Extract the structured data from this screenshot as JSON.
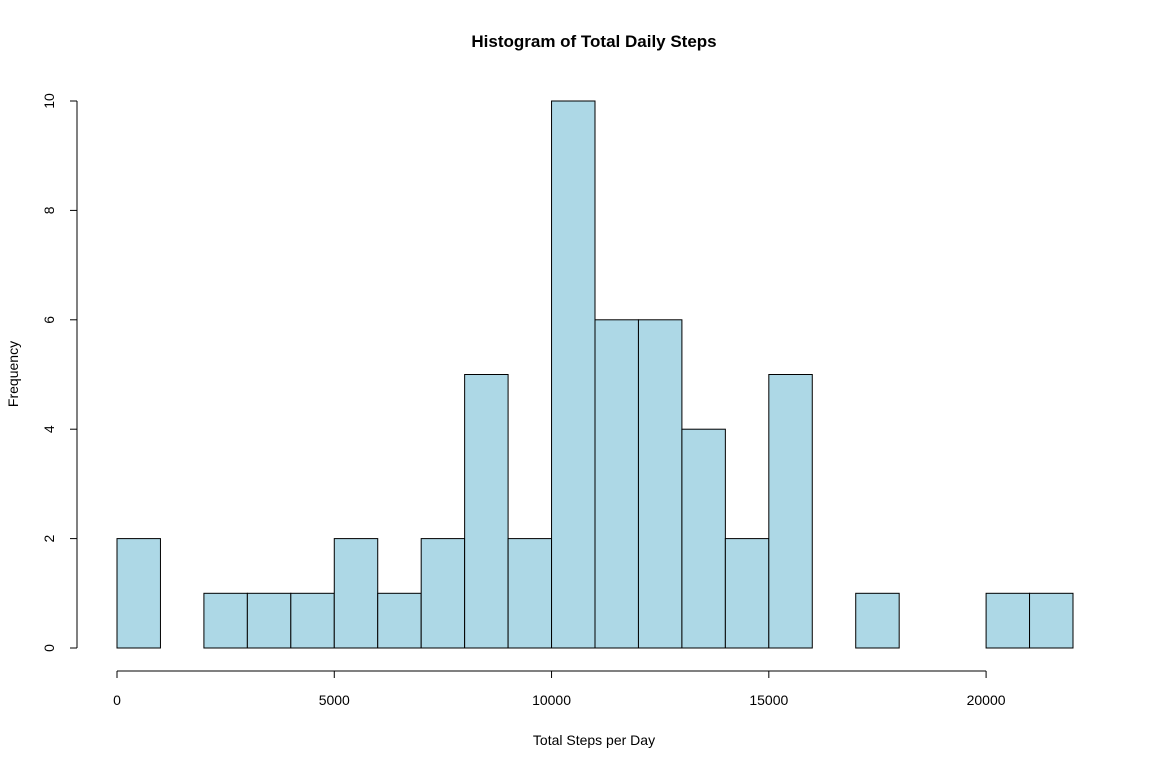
{
  "chart_data": {
    "type": "bar",
    "title": "Histogram of Total Daily Steps",
    "xlabel": "Total Steps per Day",
    "ylabel": "Frequency",
    "bin_width": 1000,
    "bins": [
      {
        "start": 0,
        "end": 1000,
        "count": 2
      },
      {
        "start": 1000,
        "end": 2000,
        "count": 0
      },
      {
        "start": 2000,
        "end": 3000,
        "count": 1
      },
      {
        "start": 3000,
        "end": 4000,
        "count": 1
      },
      {
        "start": 4000,
        "end": 5000,
        "count": 1
      },
      {
        "start": 5000,
        "end": 6000,
        "count": 2
      },
      {
        "start": 6000,
        "end": 7000,
        "count": 1
      },
      {
        "start": 7000,
        "end": 8000,
        "count": 2
      },
      {
        "start": 8000,
        "end": 9000,
        "count": 5
      },
      {
        "start": 9000,
        "end": 10000,
        "count": 2
      },
      {
        "start": 10000,
        "end": 11000,
        "count": 10
      },
      {
        "start": 11000,
        "end": 12000,
        "count": 6
      },
      {
        "start": 12000,
        "end": 13000,
        "count": 6
      },
      {
        "start": 13000,
        "end": 14000,
        "count": 4
      },
      {
        "start": 14000,
        "end": 15000,
        "count": 2
      },
      {
        "start": 15000,
        "end": 16000,
        "count": 5
      },
      {
        "start": 16000,
        "end": 17000,
        "count": 0
      },
      {
        "start": 17000,
        "end": 18000,
        "count": 1
      },
      {
        "start": 18000,
        "end": 19000,
        "count": 0
      },
      {
        "start": 19000,
        "end": 20000,
        "count": 0
      },
      {
        "start": 20000,
        "end": 21000,
        "count": 1
      },
      {
        "start": 21000,
        "end": 22000,
        "count": 1
      }
    ],
    "xlim": [
      0,
      22000
    ],
    "ylim": [
      0,
      10
    ],
    "x_ticks": [
      0,
      5000,
      10000,
      15000,
      20000
    ],
    "y_ticks": [
      0,
      2,
      4,
      6,
      8,
      10
    ],
    "grid": false,
    "legend": "none",
    "bar_fill": "#add8e6",
    "bar_stroke": "#000000"
  }
}
